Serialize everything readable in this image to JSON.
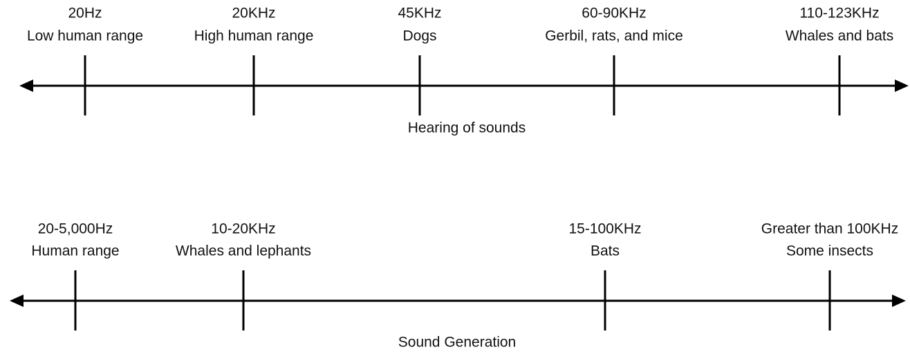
{
  "timelines": [
    {
      "title": "Hearing of sounds",
      "markers": [
        {
          "frequency": "20Hz",
          "label": "Low human range"
        },
        {
          "frequency": "20KHz",
          "label": "High human range"
        },
        {
          "frequency": "45KHz",
          "label": "Dogs"
        },
        {
          "frequency": "60-90KHz",
          "label": "Gerbil, rats, and mice"
        },
        {
          "frequency": "110-123KHz",
          "label": "Whales and bats"
        }
      ]
    },
    {
      "title": "Sound Generation",
      "markers": [
        {
          "frequency": "20-5,000Hz",
          "label": "Human range"
        },
        {
          "frequency": "10-20KHz",
          "label": "Whales and lephants"
        },
        {
          "frequency": "15-100KHz",
          "label": "Bats"
        },
        {
          "frequency": "Greater than 100KHz",
          "label": "Some insects"
        }
      ]
    }
  ]
}
